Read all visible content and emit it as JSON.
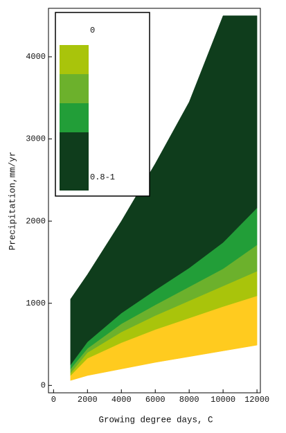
{
  "chart_data": {
    "type": "range_area",
    "x_label": "Growing degree days, C",
    "y_label": "Precipitation,mm/yr",
    "x": [
      1000,
      2000,
      4000,
      6000,
      8000,
      10000,
      12000
    ],
    "series": [
      {
        "color": "#ffcb1f",
        "low": [
          60,
          120,
          200,
          280,
          350,
          420,
          490
        ],
        "high": [
          120,
          330,
          520,
          680,
          820,
          960,
          1090
        ]
      },
      {
        "color": "#a9c40b",
        "low": [
          120,
          330,
          520,
          680,
          820,
          960,
          1090
        ],
        "high": [
          150,
          400,
          650,
          850,
          1030,
          1210,
          1390
        ]
      },
      {
        "color": "#6cb12c",
        "low": [
          150,
          400,
          650,
          850,
          1030,
          1210,
          1390
        ],
        "high": [
          200,
          450,
          750,
          980,
          1200,
          1420,
          1710
        ]
      },
      {
        "color": "#229e38",
        "low": [
          200,
          450,
          750,
          980,
          1200,
          1420,
          1710
        ],
        "high": [
          250,
          530,
          880,
          1160,
          1430,
          1740,
          2160
        ]
      },
      {
        "color": "#0f3d1c",
        "low": [
          250,
          530,
          880,
          1160,
          1430,
          1740,
          2160
        ],
        "high": [
          1050,
          1350,
          2000,
          2700,
          3450,
          4500,
          4500
        ]
      }
    ],
    "legend": {
      "labels": [
        "0",
        "0.8-1"
      ],
      "colors": [
        "#a9c40b",
        "#6cb12c",
        "#229e38",
        "#0f3d1c"
      ]
    },
    "xlim": [
      -300,
      12200
    ],
    "ylim": [
      -90,
      4590
    ],
    "xticks": [
      0,
      2000,
      4000,
      6000,
      8000,
      10000,
      12000
    ],
    "yticks": [
      0,
      1000,
      2000,
      3000,
      4000
    ]
  }
}
